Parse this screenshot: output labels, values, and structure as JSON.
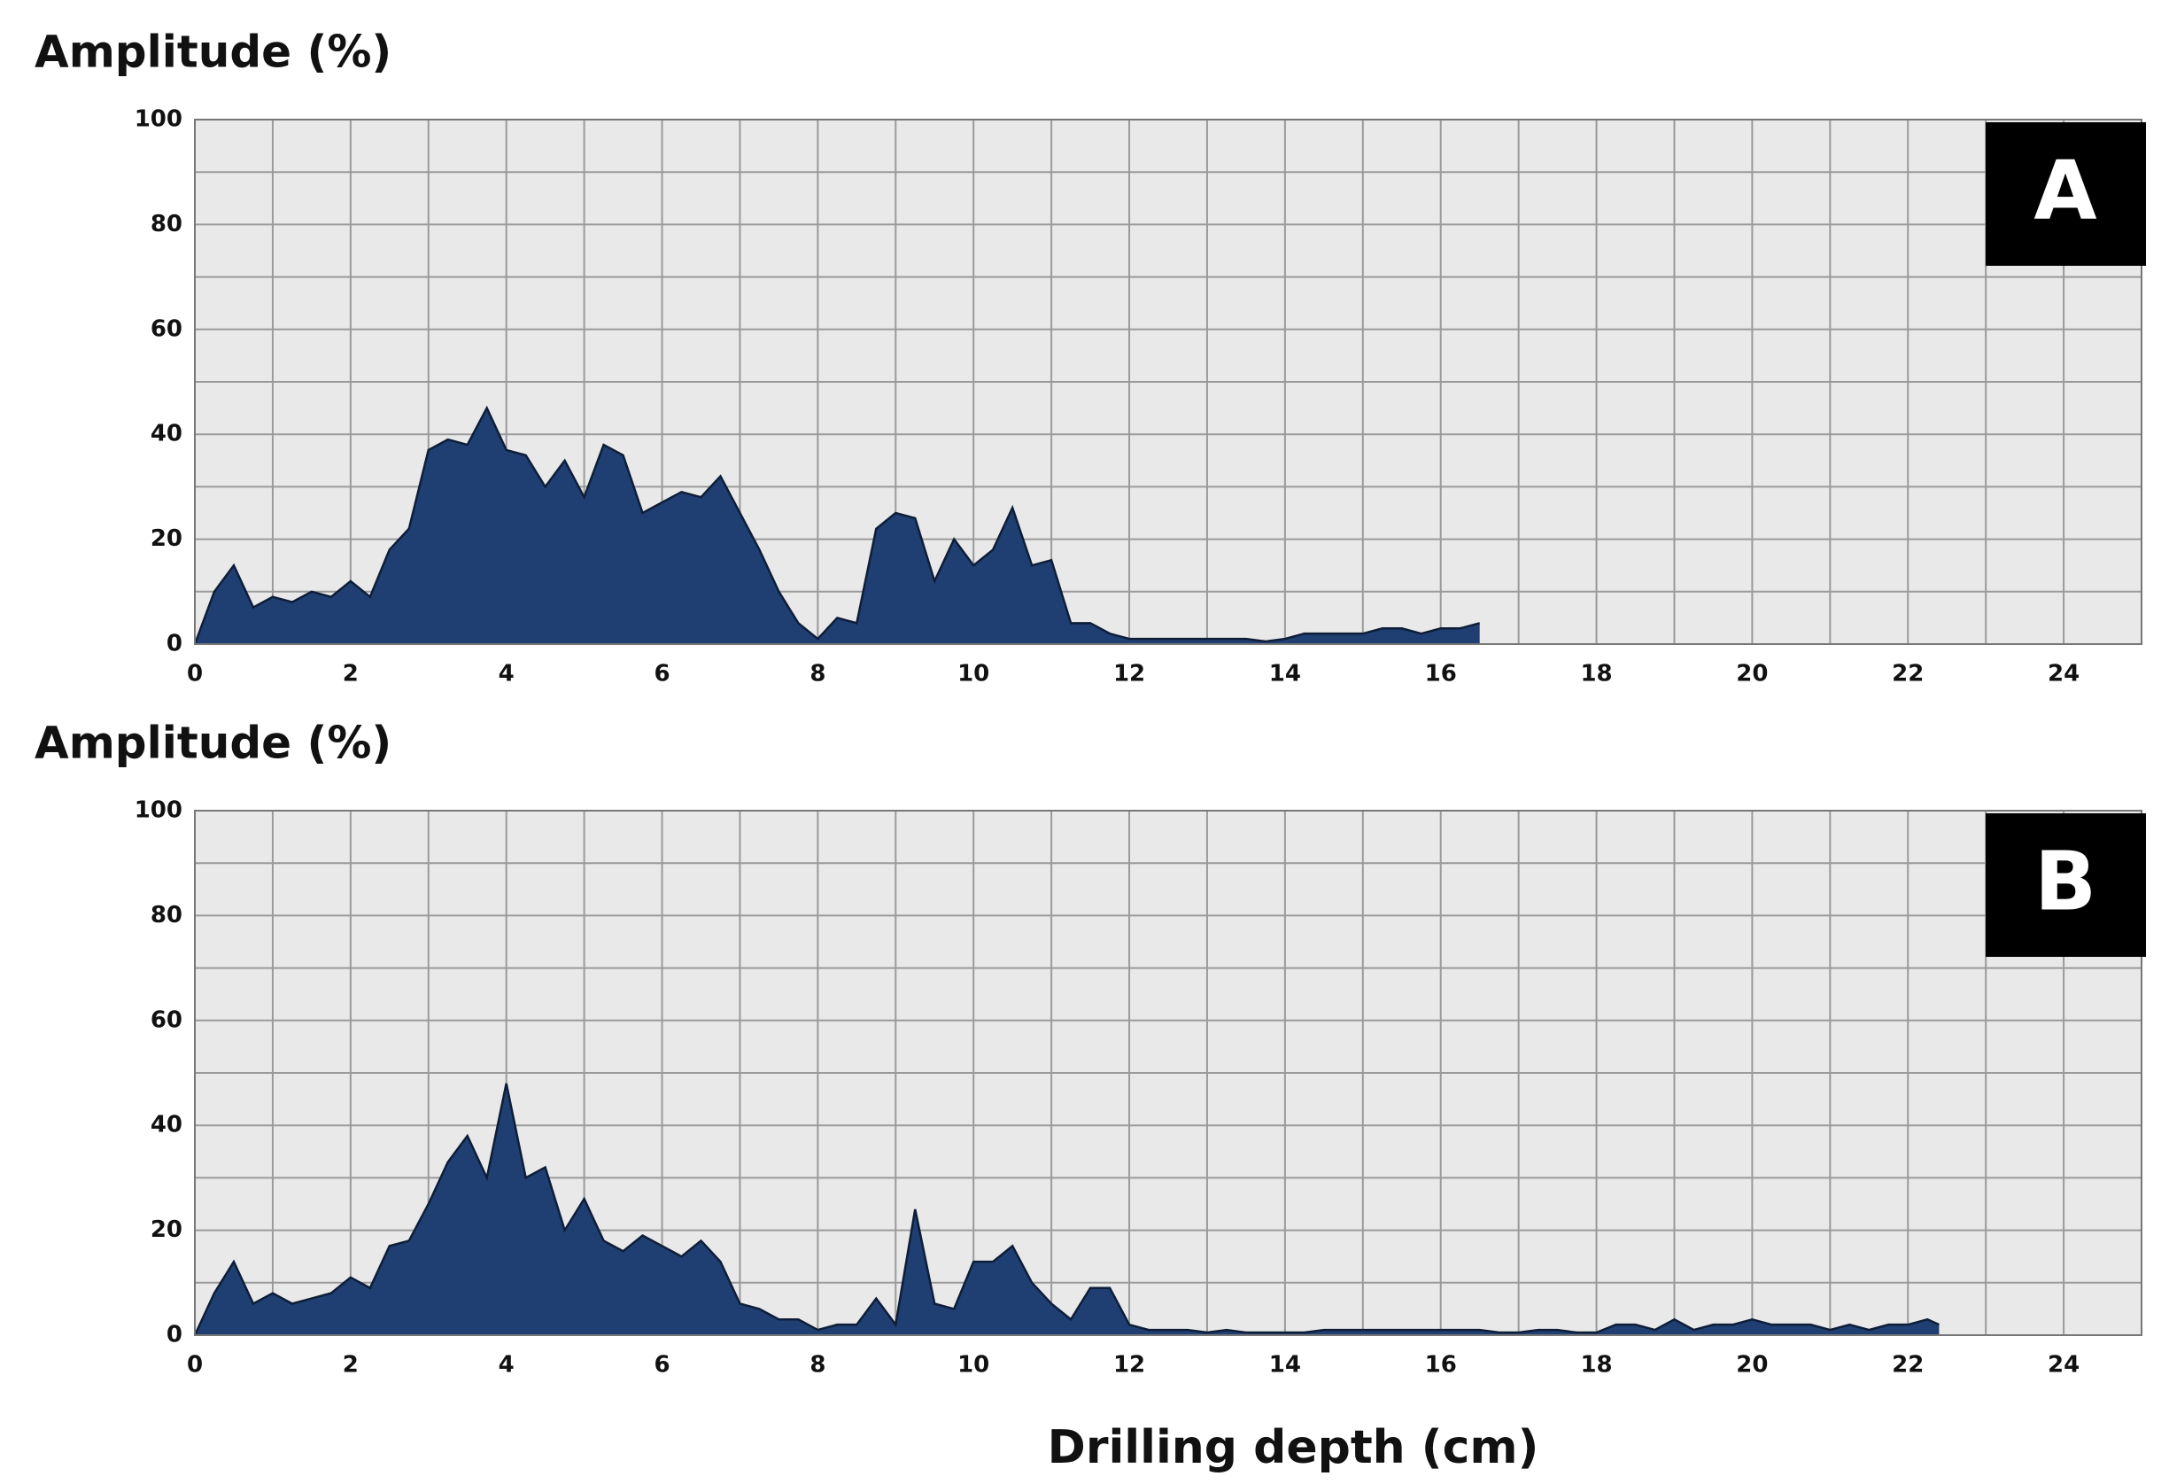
{
  "chart_data": [
    {
      "type": "area",
      "ylabel": "Amplitude (%)",
      "label": "A",
      "color": "#1f3f73",
      "grid": true,
      "xlim": [
        0,
        25
      ],
      "xticks": [
        0,
        2,
        4,
        6,
        8,
        10,
        12,
        14,
        16,
        18,
        20,
        22,
        24
      ],
      "ylim": [
        0,
        100
      ],
      "yticks": [
        0,
        20,
        40,
        60,
        80,
        100
      ],
      "x": [
        0,
        0.25,
        0.5,
        0.75,
        1,
        1.25,
        1.5,
        1.75,
        2,
        2.25,
        2.5,
        2.75,
        3,
        3.25,
        3.5,
        3.75,
        4,
        4.25,
        4.5,
        4.75,
        5,
        5.25,
        5.5,
        5.75,
        6,
        6.25,
        6.5,
        6.75,
        7,
        7.25,
        7.5,
        7.75,
        8,
        8.25,
        8.5,
        8.75,
        9,
        9.25,
        9.5,
        9.75,
        10,
        10.25,
        10.5,
        10.75,
        11,
        11.25,
        11.5,
        11.75,
        12,
        12.25,
        12.5,
        12.75,
        13,
        13.25,
        13.5,
        13.75,
        14,
        14.25,
        14.5,
        14.75,
        15,
        15.25,
        15.5,
        15.75,
        16,
        16.25,
        16.5
      ],
      "values": [
        0,
        10,
        15,
        7,
        9,
        8,
        10,
        9,
        12,
        9,
        18,
        22,
        37,
        39,
        38,
        45,
        37,
        36,
        30,
        35,
        28,
        38,
        36,
        25,
        27,
        29,
        28,
        32,
        25,
        18,
        10,
        4,
        1,
        5,
        4,
        22,
        25,
        24,
        12,
        20,
        15,
        18,
        26,
        15,
        16,
        4,
        4,
        2,
        1,
        1,
        1,
        1,
        1,
        1,
        1,
        0.5,
        1,
        2,
        2,
        2,
        2,
        3,
        3,
        2,
        3,
        3,
        4
      ]
    },
    {
      "type": "area",
      "ylabel": "Amplitude (%)",
      "label": "B",
      "xlabel": "Drilling depth (cm)",
      "color": "#1f3f73",
      "grid": true,
      "xlim": [
        0,
        25
      ],
      "xticks": [
        0,
        2,
        4,
        6,
        8,
        10,
        12,
        14,
        16,
        18,
        20,
        22,
        24
      ],
      "ylim": [
        0,
        100
      ],
      "yticks": [
        0,
        20,
        40,
        60,
        80,
        100
      ],
      "x": [
        0,
        0.25,
        0.5,
        0.75,
        1,
        1.25,
        1.5,
        1.75,
        2,
        2.25,
        2.5,
        2.75,
        3,
        3.25,
        3.5,
        3.75,
        4,
        4.25,
        4.5,
        4.75,
        5,
        5.25,
        5.5,
        5.75,
        6,
        6.25,
        6.5,
        6.75,
        7,
        7.25,
        7.5,
        7.75,
        8,
        8.25,
        8.5,
        8.75,
        9,
        9.25,
        9.5,
        9.75,
        10,
        10.25,
        10.5,
        10.75,
        11,
        11.25,
        11.5,
        11.75,
        12,
        12.25,
        12.5,
        12.75,
        13,
        13.25,
        13.5,
        13.75,
        14,
        14.25,
        14.5,
        14.75,
        15,
        15.25,
        15.5,
        15.75,
        16,
        16.25,
        16.5,
        16.75,
        17,
        17.25,
        17.5,
        17.75,
        18,
        18.25,
        18.5,
        18.75,
        19,
        19.25,
        19.5,
        19.75,
        20,
        20.25,
        20.5,
        20.75,
        21,
        21.25,
        21.5,
        21.75,
        22,
        22.25,
        22.4
      ],
      "values": [
        0,
        8,
        14,
        6,
        8,
        6,
        7,
        8,
        11,
        9,
        17,
        18,
        25,
        33,
        38,
        30,
        48,
        30,
        32,
        20,
        26,
        18,
        16,
        19,
        17,
        15,
        18,
        14,
        6,
        5,
        3,
        3,
        1,
        2,
        2,
        7,
        2,
        24,
        6,
        5,
        14,
        14,
        17,
        10,
        6,
        3,
        9,
        9,
        2,
        1,
        1,
        1,
        0.5,
        1,
        0.5,
        0.5,
        0.5,
        0.5,
        1,
        1,
        1,
        1,
        1,
        1,
        1,
        1,
        1,
        0.5,
        0.5,
        1,
        1,
        0.5,
        0.5,
        2,
        2,
        1,
        3,
        1,
        2,
        2,
        3,
        2,
        2,
        2,
        1,
        2,
        1,
        2,
        2,
        3,
        2
      ]
    }
  ]
}
